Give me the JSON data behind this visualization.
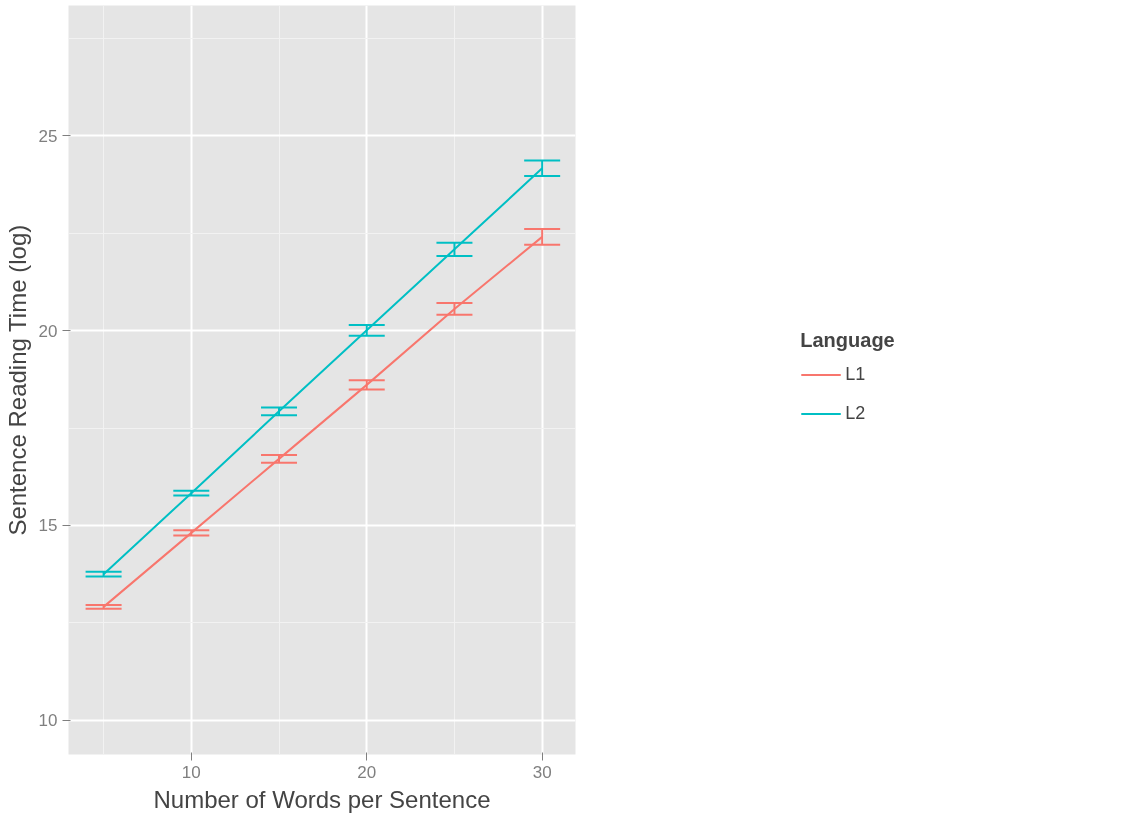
{
  "chart_data": {
    "type": "line",
    "xlabel": "Number of Words per Sentence",
    "ylabel": "Sentence Reading Time (log)",
    "legend_title": "Language",
    "x": [
      5,
      10,
      15,
      20,
      25,
      30
    ],
    "series": [
      {
        "name": "L1",
        "color": "#f8766d",
        "values": [
          12.91,
          14.81,
          16.71,
          18.61,
          20.56,
          22.41
        ],
        "errors": [
          0.05,
          0.07,
          0.1,
          0.12,
          0.15,
          0.2
        ]
      },
      {
        "name": "L2",
        "color": "#00bfc4",
        "values": [
          13.75,
          15.83,
          17.93,
          20.01,
          22.09,
          24.17
        ],
        "errors": [
          0.06,
          0.06,
          0.1,
          0.14,
          0.17,
          0.2
        ]
      }
    ],
    "xlim": [
      3.0,
      31.9
    ],
    "ylim": [
      9.12,
      28.35
    ],
    "xticks": [
      10,
      20,
      30
    ],
    "yticks": [
      10,
      15,
      20,
      25
    ],
    "grid": true,
    "legend": "right",
    "line_style": "solid"
  }
}
